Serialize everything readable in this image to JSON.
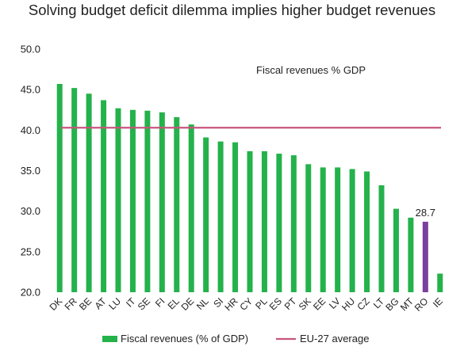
{
  "chart_data": {
    "type": "bar",
    "title": "Solving budget deficit dilemma implies higher budget revenues",
    "subtitle": "Fiscal revenues % GDP",
    "categories": [
      "DK",
      "FR",
      "BE",
      "AT",
      "LU",
      "IT",
      "SE",
      "FI",
      "EL",
      "DE",
      "NL",
      "SI",
      "HR",
      "CY",
      "PL",
      "ES",
      "PT",
      "SK",
      "EE",
      "LV",
      "HU",
      "CZ",
      "LT",
      "BG",
      "MT",
      "RO",
      "IE"
    ],
    "series": [
      {
        "name": "Fiscal revenues (% of GDP)",
        "values": [
          45.7,
          45.2,
          44.5,
          43.7,
          42.7,
          42.5,
          42.4,
          42.2,
          41.6,
          40.7,
          39.1,
          38.6,
          38.5,
          37.4,
          37.4,
          37.1,
          36.9,
          35.8,
          35.4,
          35.4,
          35.2,
          34.9,
          33.2,
          30.3,
          29.2,
          28.7,
          22.3
        ],
        "color": "#24b24b",
        "highlight_category": "RO",
        "highlight_color": "#7b3fa0"
      }
    ],
    "reference_line": {
      "name": "EU-27 average",
      "value": 40.3,
      "color": "#c8547e"
    },
    "data_labels": [
      {
        "category": "RO",
        "text": "28.7"
      }
    ],
    "ylim": [
      20,
      50
    ],
    "yticks": [
      "20.0",
      "25.0",
      "30.0",
      "35.0",
      "40.0",
      "45.0",
      "50.0"
    ],
    "xlabel": "",
    "ylabel": "",
    "grid": false,
    "legend": "bottom"
  }
}
